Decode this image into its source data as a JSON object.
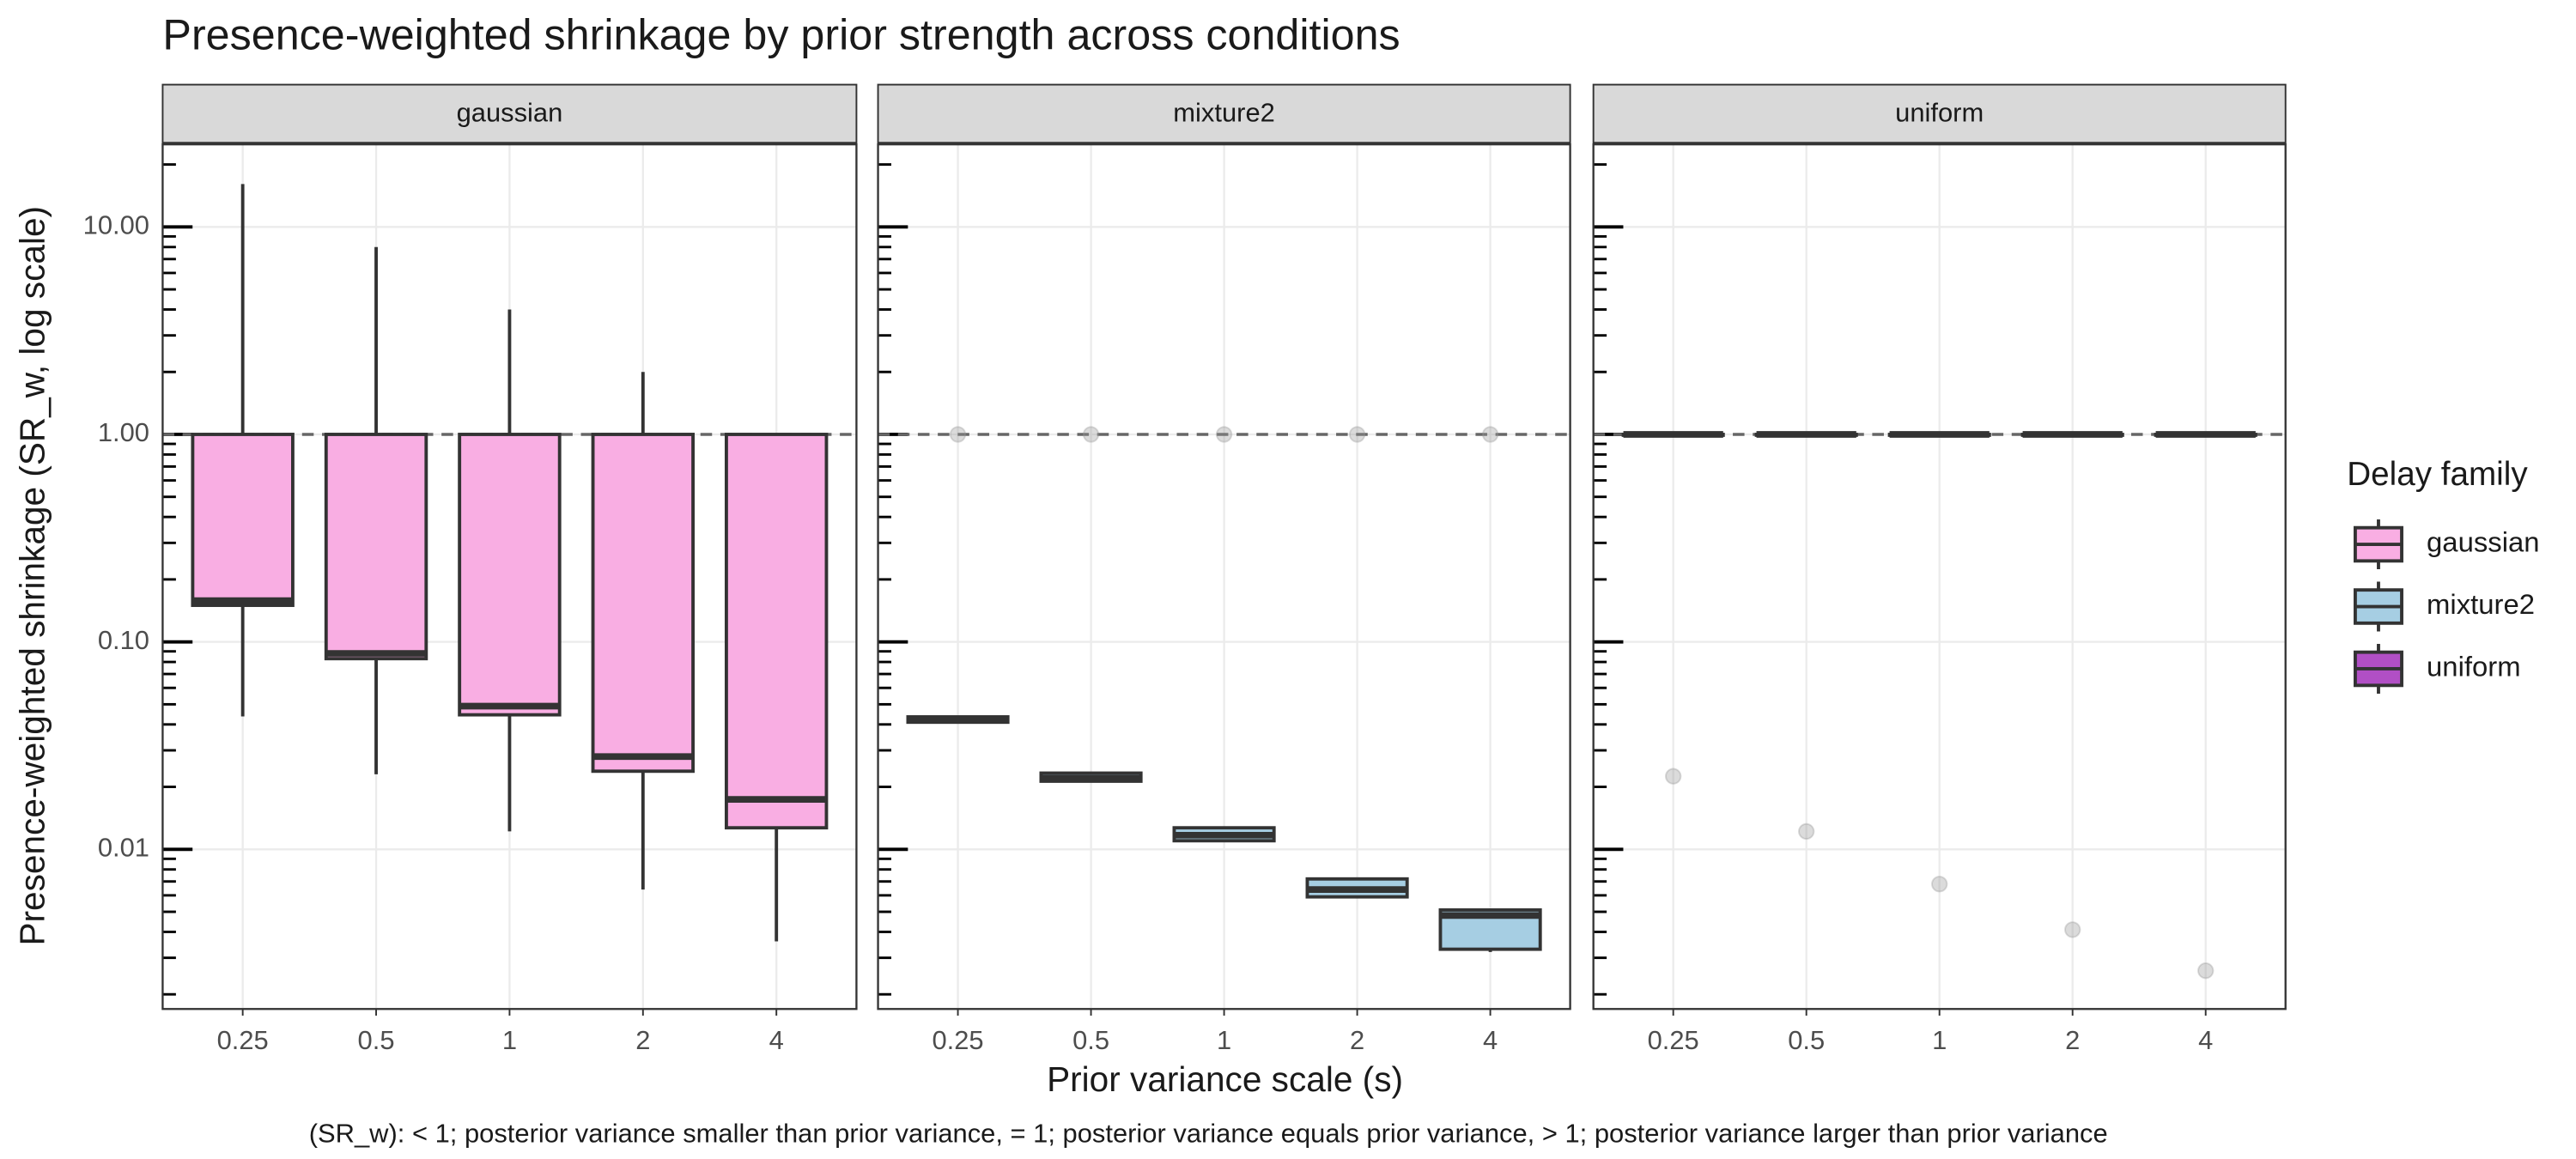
{
  "chart_data": {
    "type": "boxplot",
    "title": "Presence-weighted shrinkage by prior strength across conditions",
    "x_label": "Prior variance scale (s)",
    "y_label": "Presence-weighted shrinkage (SR_w, log scale)",
    "caption": "(SR_w): < 1; posterior variance smaller than prior variance, = 1; posterior variance equals prior variance, > 1; posterior variance larger than prior variance",
    "legend_title": "Delay family",
    "legend_position": "right",
    "log_y": true,
    "grid": true,
    "reference_line": 1,
    "categories": [
      "0.25",
      "0.5",
      "1",
      "2",
      "4"
    ],
    "ylim": [
      0.0017,
      25
    ],
    "yticks": [
      {
        "value": 0.01,
        "label": "0.01"
      },
      {
        "value": 0.1,
        "label": "0.10"
      },
      {
        "value": 1,
        "label": "1.00"
      },
      {
        "value": 10,
        "label": "10.00"
      }
    ],
    "minor_yticks": [
      0.002,
      0.003,
      0.004,
      0.005,
      0.006,
      0.007,
      0.008,
      0.009,
      0.02,
      0.03,
      0.04,
      0.05,
      0.06,
      0.07,
      0.08,
      0.09,
      0.2,
      0.3,
      0.4,
      0.5,
      0.6,
      0.7,
      0.8,
      0.9,
      2,
      3,
      4,
      5,
      6,
      7,
      8,
      9,
      20
    ],
    "series": [
      {
        "name": "gaussian",
        "color": "#f9aee3",
        "boxes": [
          {
            "min": 0.0437,
            "q1": 0.15,
            "median": 0.158,
            "q3": 1,
            "max": 16.1,
            "outliers": []
          },
          {
            "min": 0.023,
            "q1": 0.083,
            "median": 0.088,
            "q3": 1,
            "max": 8.0,
            "outliers": []
          },
          {
            "min": 0.0122,
            "q1": 0.0445,
            "median": 0.049,
            "q3": 1,
            "max": 4.0,
            "outliers": []
          },
          {
            "min": 0.0064,
            "q1": 0.0238,
            "median": 0.028,
            "q3": 1,
            "max": 2.0,
            "outliers": []
          },
          {
            "min": 0.0036,
            "q1": 0.0127,
            "median": 0.0174,
            "q3": 1,
            "max": 1,
            "outliers": []
          }
        ]
      },
      {
        "name": "mixture2",
        "color": "#a6cee3",
        "boxes": [
          {
            "min": 0.041,
            "q1": 0.041,
            "median": 0.042,
            "q3": 0.0435,
            "max": 0.0435,
            "outliers": [
              1
            ]
          },
          {
            "min": 0.0213,
            "q1": 0.0213,
            "median": 0.022,
            "q3": 0.0233,
            "max": 0.0233,
            "outliers": [
              1
            ]
          },
          {
            "min": 0.011,
            "q1": 0.011,
            "median": 0.0117,
            "q3": 0.0127,
            "max": 0.0127,
            "outliers": [
              1
            ]
          },
          {
            "min": 0.0058,
            "q1": 0.0059,
            "median": 0.0064,
            "q3": 0.0072,
            "max": 0.0072,
            "outliers": [
              1
            ]
          },
          {
            "min": 0.0032,
            "q1": 0.0033,
            "median": 0.0048,
            "q3": 0.0051,
            "max": 0.0051,
            "outliers": [
              1
            ]
          }
        ]
      },
      {
        "name": "uniform",
        "color": "#b14fc5",
        "boxes": [
          {
            "min": 1,
            "q1": 1,
            "median": 1,
            "q3": 1,
            "max": 1,
            "outliers": [
              0.0225
            ]
          },
          {
            "min": 1,
            "q1": 1,
            "median": 1,
            "q3": 1,
            "max": 1,
            "outliers": [
              0.0122
            ]
          },
          {
            "min": 1,
            "q1": 1,
            "median": 1,
            "q3": 1,
            "max": 1,
            "outliers": [
              0.0068
            ]
          },
          {
            "min": 1,
            "q1": 1,
            "median": 1,
            "q3": 1,
            "max": 1,
            "outliers": [
              0.0041
            ]
          },
          {
            "min": 1,
            "q1": 1,
            "median": 1,
            "q3": 1,
            "max": 1,
            "outliers": [
              0.0026
            ]
          }
        ]
      }
    ]
  }
}
